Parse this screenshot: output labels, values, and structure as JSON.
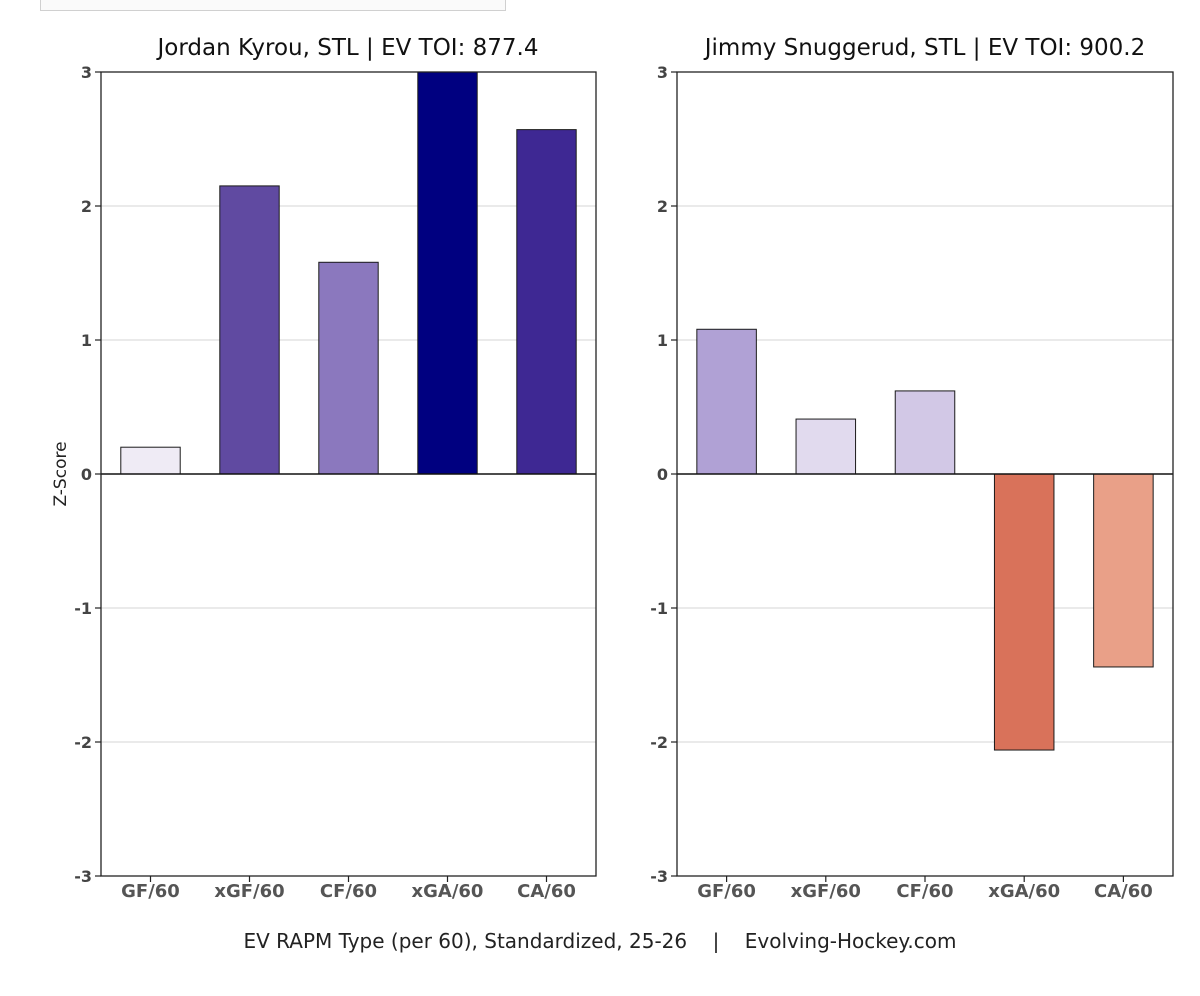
{
  "chart_data": [
    {
      "type": "bar",
      "title": "Jordan Kyrou, STL  |  EV TOI: 877.4",
      "ylabel": "Z-Score",
      "ylim": [
        -3,
        3
      ],
      "yticks": [
        3,
        2,
        1,
        0,
        -1,
        -2,
        -3
      ],
      "categories": [
        "GF/60",
        "xGF/60",
        "CF/60",
        "xGA/60",
        "CA/60"
      ],
      "values": [
        0.2,
        2.15,
        1.58,
        3.0,
        2.57
      ],
      "colors": [
        "#efebf5",
        "#604aa1",
        "#8b78be",
        "#000080",
        "#3e2893"
      ],
      "grid": true
    },
    {
      "type": "bar",
      "title": "Jimmy Snuggerud, STL  |  EV TOI: 900.2",
      "ylim": [
        -3,
        3
      ],
      "yticks": [
        3,
        2,
        1,
        0,
        -1,
        -2,
        -3
      ],
      "categories": [
        "GF/60",
        "xGF/60",
        "CF/60",
        "xGA/60",
        "CA/60"
      ],
      "values": [
        1.08,
        0.41,
        0.62,
        -2.06,
        -1.44
      ],
      "colors": [
        "#b0a1d5",
        "#e1daee",
        "#d2c8e6",
        "#d9725a",
        "#e9a088"
      ],
      "grid": true
    }
  ],
  "footer": "EV RAPM Type (per 60), Standardized, 25-26    |    Evolving-Hockey.com"
}
